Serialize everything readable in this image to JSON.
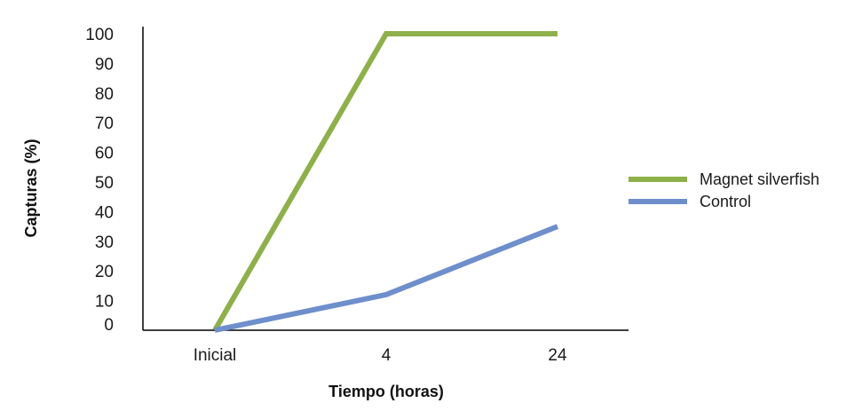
{
  "chart_data": {
    "type": "line",
    "categories": [
      "Inicial",
      "4",
      "24"
    ],
    "series": [
      {
        "name": "Magnet silverfish",
        "values": [
          0,
          100,
          100
        ],
        "color": "#8eb04b"
      },
      {
        "name": "Control",
        "values": [
          0,
          12,
          35
        ],
        "color": "#6e8fcb"
      }
    ],
    "title": "",
    "xlabel": "Tiempo (horas)",
    "ylabel": "Capturas (%)",
    "ylim": [
      0,
      100
    ],
    "yticks": [
      0,
      10,
      20,
      30,
      40,
      50,
      60,
      70,
      80,
      90,
      100
    ],
    "grid": false,
    "legend_position": "right"
  }
}
